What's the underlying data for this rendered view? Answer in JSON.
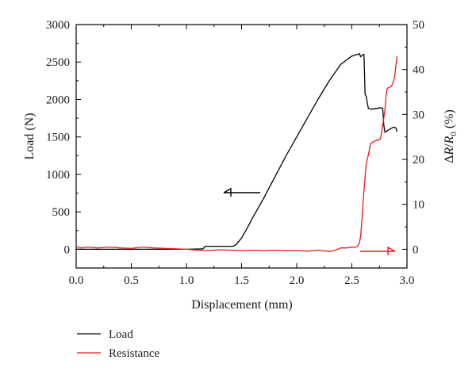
{
  "chart_data": {
    "type": "line",
    "xlabel": "Displacement (mm)",
    "ylabel_left": "Load (N)",
    "ylabel_right": {
      "prefix": "Δ",
      "r": "R",
      "slash": "/",
      "r0": "R",
      "sub": "0",
      "unit": " (%)"
    },
    "xlim": [
      0.0,
      3.0
    ],
    "ylim_left": [
      -250,
      3000
    ],
    "ylim_right": [
      -4.1667,
      50
    ],
    "x_ticks": [
      "0.0",
      "0.5",
      "1.0",
      "1.5",
      "2.0",
      "2.5",
      "3.0"
    ],
    "y_left_ticks": [
      "0",
      "500",
      "1000",
      "1500",
      "2000",
      "2500",
      "3000"
    ],
    "y_right_ticks": [
      "0",
      "10",
      "20",
      "30",
      "40",
      "50"
    ],
    "grid": false,
    "legend_position": "below",
    "series": [
      {
        "name": "Load",
        "axis": "left",
        "color": "#000000",
        "x": [
          0.0,
          0.5,
          1.0,
          1.15,
          1.17,
          1.3,
          1.42,
          1.45,
          1.5,
          1.55,
          1.6,
          1.7,
          1.8,
          1.9,
          2.0,
          2.1,
          2.2,
          2.3,
          2.4,
          2.5,
          2.57,
          2.58,
          2.6,
          2.61,
          2.62,
          2.63,
          2.65,
          2.68,
          2.72,
          2.76,
          2.78,
          2.79,
          2.8,
          2.82,
          2.85,
          2.88,
          2.9,
          2.91
        ],
        "y": [
          0,
          0,
          0,
          5,
          40,
          40,
          40,
          60,
          150,
          280,
          420,
          680,
          960,
          1240,
          1500,
          1760,
          2020,
          2260,
          2470,
          2580,
          2610,
          2570,
          2600,
          2600,
          2070,
          2040,
          1880,
          1870,
          1880,
          1890,
          1880,
          1660,
          1560,
          1580,
          1610,
          1630,
          1620,
          1570
        ]
      },
      {
        "name": "Resistance",
        "axis": "right",
        "color": "#e8191b",
        "x": [
          0.0,
          0.05,
          0.1,
          0.2,
          0.3,
          0.4,
          0.5,
          0.6,
          0.7,
          0.8,
          0.9,
          1.0,
          1.1,
          1.2,
          1.3,
          1.4,
          1.5,
          1.6,
          1.7,
          1.8,
          1.9,
          2.0,
          2.1,
          2.2,
          2.3,
          2.35,
          2.4,
          2.45,
          2.5,
          2.52,
          2.55,
          2.57,
          2.58,
          2.59,
          2.6,
          2.62,
          2.63,
          2.65,
          2.67,
          2.7,
          2.72,
          2.74,
          2.75,
          2.76,
          2.78,
          2.8,
          2.81,
          2.82,
          2.84,
          2.86,
          2.88,
          2.89,
          2.9,
          2.91
        ],
        "y": [
          0.6,
          0.3,
          0.5,
          0.3,
          0.5,
          0.3,
          0.2,
          0.5,
          0.3,
          0.2,
          0.1,
          0.0,
          -0.2,
          -0.3,
          -0.1,
          -0.2,
          -0.3,
          -0.2,
          -0.3,
          -0.2,
          -0.3,
          -0.3,
          -0.4,
          -0.2,
          -0.5,
          -0.2,
          0.3,
          0.3,
          0.5,
          0.4,
          0.6,
          1.5,
          3.0,
          6.0,
          10.0,
          16.0,
          19.0,
          21.0,
          23.5,
          24.0,
          24.2,
          24.3,
          24.5,
          24.5,
          27.5,
          31.0,
          34.0,
          35.8,
          36.0,
          36.3,
          37.5,
          38.8,
          41.0,
          43.0
        ]
      }
    ],
    "annotations": [
      {
        "type": "arrow",
        "direction": "left",
        "series": "Load",
        "color": "#000000"
      },
      {
        "type": "arrow",
        "direction": "right",
        "series": "Resistance",
        "color": "#e8191b"
      }
    ]
  }
}
